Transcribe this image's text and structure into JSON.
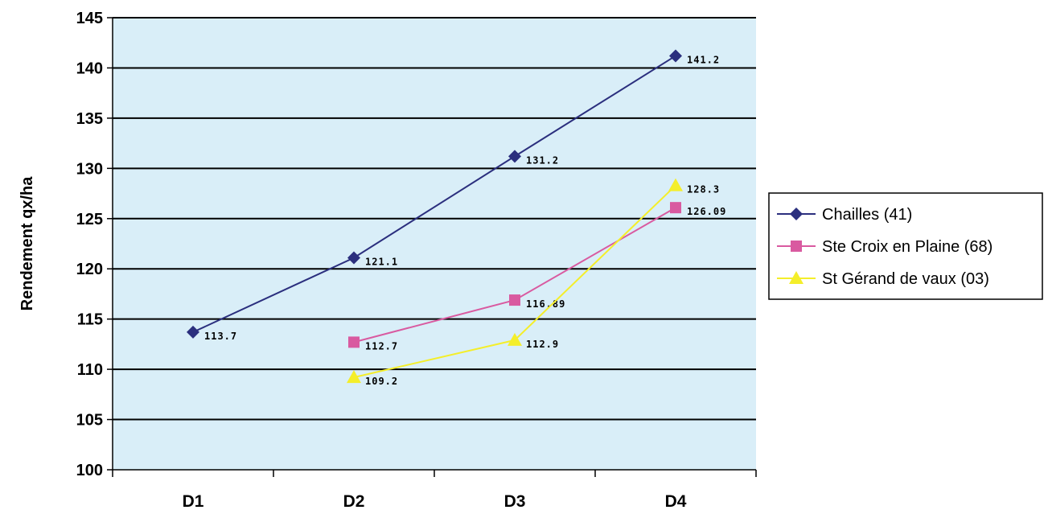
{
  "chart_data": {
    "type": "line",
    "ylabel": "Rendement qx/ha",
    "xlabel": "",
    "categories": [
      "D1",
      "D2",
      "D3",
      "D4"
    ],
    "ylim": [
      100,
      145
    ],
    "yticks": [
      100,
      105,
      110,
      115,
      120,
      125,
      130,
      135,
      140,
      145
    ],
    "grid": true,
    "legend_position": "right",
    "plot_background": "#d9eef8",
    "series": [
      {
        "name": "Chailles (41)",
        "values": [
          113.7,
          121.1,
          131.2,
          141.2
        ],
        "labels": [
          "113.7",
          "121.1",
          "131.2",
          "141.2"
        ],
        "color": "#2b2f7e",
        "marker": "diamond"
      },
      {
        "name": "Ste Croix en Plaine (68)",
        "values": [
          null,
          112.7,
          116.89,
          126.09
        ],
        "labels": [
          "",
          "112.7",
          "116.89",
          "126.09"
        ],
        "color": "#d95aa0",
        "marker": "square"
      },
      {
        "name": "St Gérand de vaux (03)",
        "values": [
          null,
          109.2,
          112.9,
          128.3
        ],
        "labels": [
          "",
          "109.2",
          "112.9",
          "128.3"
        ],
        "color": "#f4ee2a",
        "marker": "triangle"
      }
    ]
  }
}
